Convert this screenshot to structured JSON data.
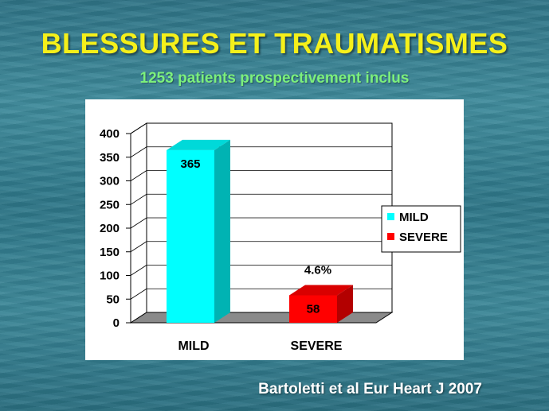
{
  "slide": {
    "title": "BLESSURES ET TRAUMATISMES",
    "subtitle": "1253 patients prospectivement inclus",
    "citation": "Bartoletti et al Eur Heart J 2007"
  },
  "chart_data": {
    "type": "bar",
    "categories": [
      "MILD",
      "SEVERE"
    ],
    "values": [
      365,
      58
    ],
    "data_labels": [
      "365",
      "58"
    ],
    "annotations": [
      {
        "category": "SEVERE",
        "text": "4.6%"
      }
    ],
    "colors": [
      "#00ffff",
      "#ff0000"
    ],
    "legend": [
      "MILD",
      "SEVERE"
    ],
    "legend_placement": "right",
    "ylim": [
      0,
      400
    ],
    "yticks": [
      0,
      50,
      100,
      150,
      200,
      250,
      300,
      350,
      400
    ],
    "grid": true,
    "three_d": true
  }
}
